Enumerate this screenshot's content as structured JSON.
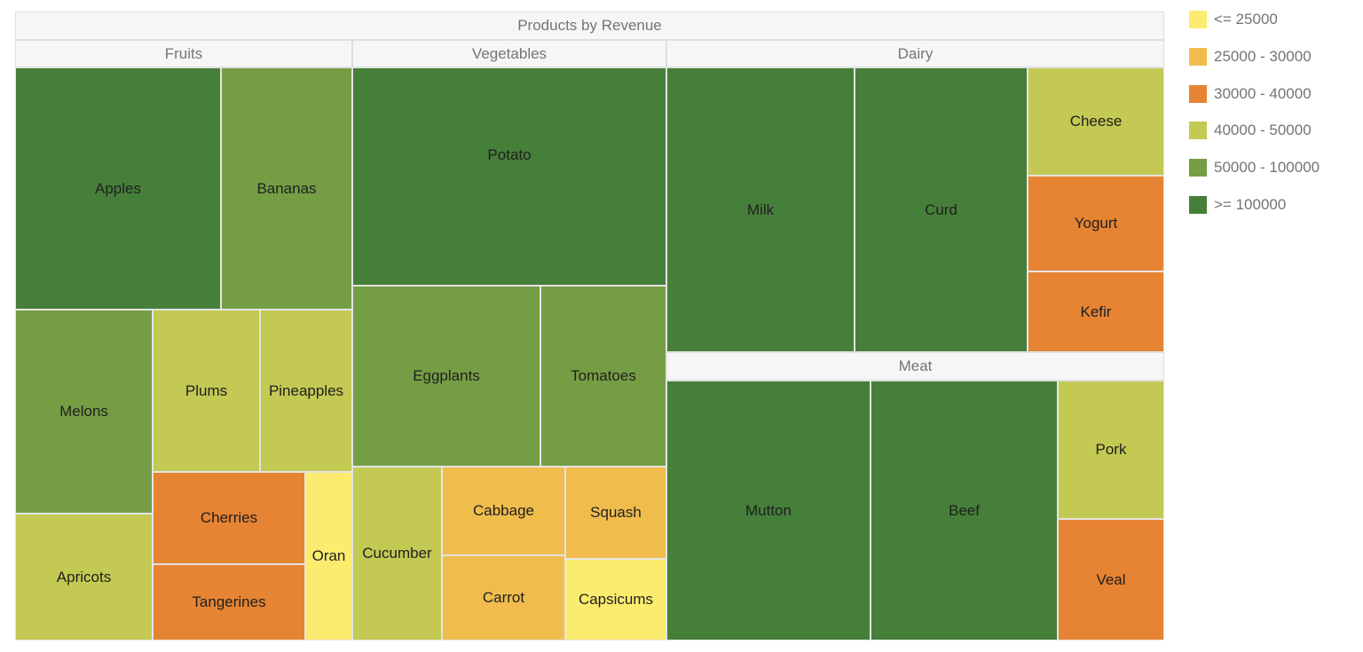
{
  "chart_data": {
    "type": "treemap",
    "title": "Products by Revenue",
    "colors": {
      "le25000": "#fbec6f",
      "r25_30": "#f0bd4d",
      "r30_40": "#e68433",
      "r40_50": "#c3c953",
      "r50_100": "#759e44",
      "ge100000": "#467f3a"
    },
    "legend": {
      "position": "right",
      "items": [
        {
          "label": "<= 25000",
          "color": "#fbec6f"
        },
        {
          "label": "25000 - 30000",
          "color": "#f0bd4d"
        },
        {
          "label": "30000 - 40000",
          "color": "#e68433"
        },
        {
          "label": "40000 - 50000",
          "color": "#c3c953"
        },
        {
          "label": "50000 - 100000",
          "color": "#759e44"
        },
        {
          "label": ">= 100000",
          "color": "#467f3a"
        }
      ]
    },
    "groups": [
      {
        "name": "Fruits",
        "items": [
          {
            "name": "Apples",
            "band": ">= 100000"
          },
          {
            "name": "Bananas",
            "band": "50000 - 100000"
          },
          {
            "name": "Melons",
            "band": "50000 - 100000"
          },
          {
            "name": "Plums",
            "band": "40000 - 50000"
          },
          {
            "name": "Pineapples",
            "band": "40000 - 50000"
          },
          {
            "name": "Apricots",
            "band": "40000 - 50000"
          },
          {
            "name": "Cherries",
            "band": "30000 - 40000"
          },
          {
            "name": "Tangerines",
            "band": "30000 - 40000"
          },
          {
            "name": "Oran",
            "band": "<= 25000"
          }
        ]
      },
      {
        "name": "Vegetables",
        "items": [
          {
            "name": "Potato",
            "band": ">= 100000"
          },
          {
            "name": "Eggplants",
            "band": "50000 - 100000"
          },
          {
            "name": "Tomatoes",
            "band": "50000 - 100000"
          },
          {
            "name": "Cucumber",
            "band": "40000 - 50000"
          },
          {
            "name": "Cabbage",
            "band": "25000 - 30000"
          },
          {
            "name": "Squash",
            "band": "25000 - 30000"
          },
          {
            "name": "Carrot",
            "band": "25000 - 30000"
          },
          {
            "name": "Capsicums",
            "band": "<= 25000"
          }
        ]
      },
      {
        "name": "Dairy",
        "items": [
          {
            "name": "Milk",
            "band": ">= 100000"
          },
          {
            "name": "Curd",
            "band": ">= 100000"
          },
          {
            "name": "Cheese",
            "band": "40000 - 50000"
          },
          {
            "name": "Yogurt",
            "band": "30000 - 40000"
          },
          {
            "name": "Kefir",
            "band": "30000 - 40000"
          }
        ]
      },
      {
        "name": "Meat",
        "items": [
          {
            "name": "Mutton",
            "band": ">= 100000"
          },
          {
            "name": "Beef",
            "band": ">= 100000"
          },
          {
            "name": "Pork",
            "band": "40000 - 50000"
          },
          {
            "name": "Veal",
            "band": "30000 - 40000"
          }
        ]
      }
    ]
  }
}
